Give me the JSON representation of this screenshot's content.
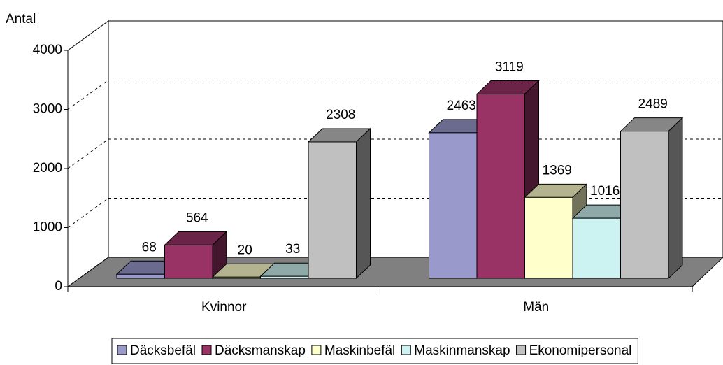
{
  "chart_data": {
    "type": "bar3d",
    "y_label": "Antal",
    "categories": [
      "Kvinnor",
      "Män"
    ],
    "series": [
      {
        "name": "Däcksbefäl",
        "color": "#9999cc",
        "values": [
          68,
          2463
        ]
      },
      {
        "name": "Däcksmanskap",
        "color": "#993366",
        "values": [
          564,
          3119
        ]
      },
      {
        "name": "Maskinbefäl",
        "color": "#ffffcc",
        "values": [
          20,
          1369
        ]
      },
      {
        "name": "Maskinmanskap",
        "color": "#ccf2f2",
        "values": [
          33,
          1016
        ]
      },
      {
        "name": "Ekonomipersonal",
        "color": "#c0c0c0",
        "values": [
          2308,
          2489
        ]
      }
    ],
    "ylim": [
      0,
      4000
    ],
    "yticks": [
      0,
      1000,
      2000,
      3000,
      4000
    ],
    "grid": true,
    "legend": "bottom"
  }
}
